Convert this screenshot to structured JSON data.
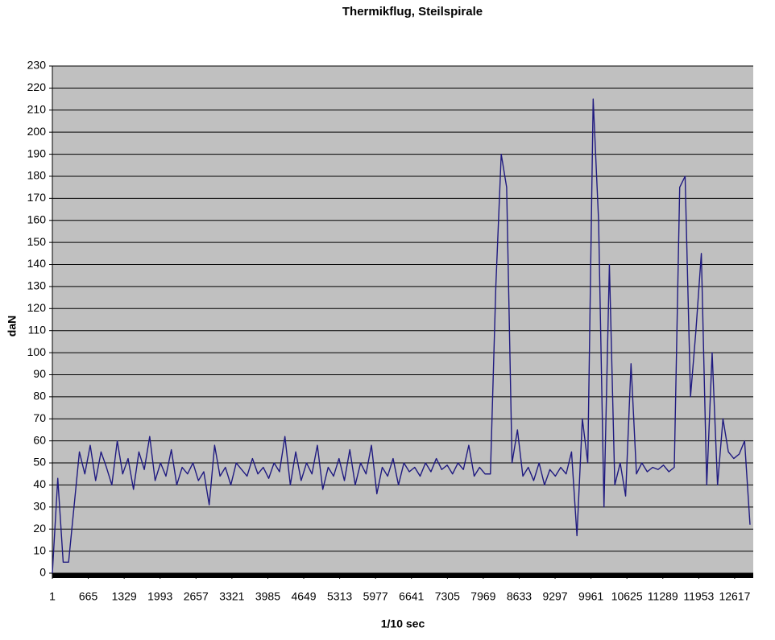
{
  "chart_data": {
    "type": "line",
    "title": "Thermikflug, Steilspirale",
    "x_label": "1/10 sec",
    "y_label": "daN",
    "x": [
      1,
      101,
      201,
      301,
      401,
      501,
      601,
      701,
      801,
      901,
      1001,
      1101,
      1201,
      1301,
      1401,
      1501,
      1601,
      1701,
      1801,
      1901,
      2001,
      2101,
      2201,
      2301,
      2401,
      2501,
      2601,
      2701,
      2801,
      2901,
      3001,
      3101,
      3201,
      3301,
      3401,
      3501,
      3601,
      3701,
      3801,
      3901,
      4001,
      4101,
      4201,
      4301,
      4401,
      4501,
      4601,
      4701,
      4801,
      4901,
      5001,
      5101,
      5201,
      5301,
      5401,
      5501,
      5601,
      5701,
      5801,
      5901,
      6001,
      6101,
      6201,
      6301,
      6401,
      6501,
      6601,
      6701,
      6801,
      6901,
      7001,
      7101,
      7201,
      7301,
      7401,
      7501,
      7601,
      7701,
      7801,
      7901,
      8001,
      8101,
      8201,
      8301,
      8401,
      8501,
      8601,
      8701,
      8801,
      8901,
      9001,
      9101,
      9201,
      9301,
      9401,
      9501,
      9601,
      9701,
      9801,
      9901,
      10001,
      10101,
      10201,
      10301,
      10401,
      10501,
      10601,
      10701,
      10801,
      10901,
      11001,
      11101,
      11201,
      11301,
      11401,
      11501,
      11601,
      11701,
      11801,
      11901,
      12001,
      12101,
      12201,
      12301,
      12401,
      12501,
      12601,
      12701,
      12801,
      12901
    ],
    "values": [
      0,
      43,
      5,
      5,
      30,
      55,
      45,
      58,
      42,
      55,
      48,
      40,
      60,
      45,
      52,
      38,
      55,
      47,
      62,
      42,
      50,
      44,
      56,
      40,
      48,
      45,
      50,
      42,
      46,
      31,
      58,
      44,
      48,
      40,
      50,
      47,
      44,
      52,
      45,
      48,
      43,
      50,
      46,
      62,
      40,
      55,
      42,
      50,
      45,
      58,
      38,
      48,
      44,
      52,
      42,
      56,
      40,
      50,
      45,
      58,
      36,
      48,
      44,
      52,
      40,
      50,
      46,
      48,
      44,
      50,
      46,
      52,
      47,
      49,
      45,
      50,
      47,
      58,
      44,
      48,
      45,
      45,
      130,
      190,
      175,
      50,
      65,
      44,
      48,
      42,
      50,
      40,
      47,
      44,
      48,
      45,
      55,
      17,
      70,
      50,
      215,
      160,
      30,
      140,
      40,
      50,
      35,
      95,
      45,
      50,
      46,
      48,
      47,
      49,
      46,
      48,
      175,
      180,
      80,
      110,
      145,
      40,
      100,
      40,
      70,
      55,
      52,
      54,
      60,
      22
    ],
    "color": "#1f1a80",
    "xlim": [
      1,
      12961
    ],
    "xticks": [
      1,
      665,
      1329,
      1993,
      2657,
      3321,
      3985,
      4649,
      5313,
      5977,
      6641,
      7305,
      7969,
      8633,
      9297,
      9961,
      10625,
      11289,
      11953,
      12617
    ],
    "ylim": [
      0,
      230
    ],
    "yticks": [
      0,
      10,
      20,
      30,
      40,
      50,
      60,
      70,
      80,
      90,
      100,
      110,
      120,
      130,
      140,
      150,
      160,
      170,
      180,
      190,
      200,
      210,
      220,
      230
    ],
    "grid": true,
    "background": "#c0c0c0"
  }
}
